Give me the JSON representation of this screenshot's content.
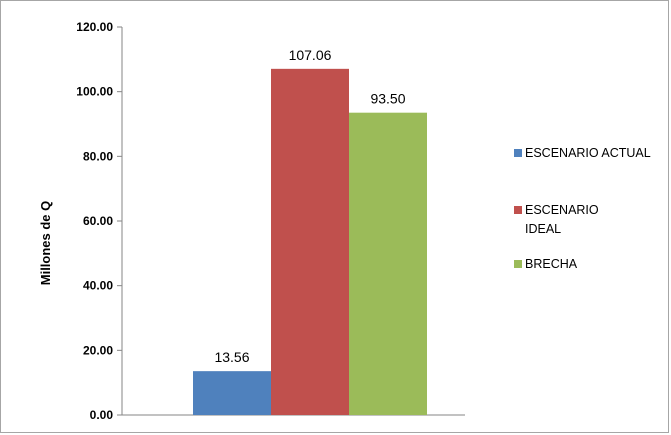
{
  "chart_data": {
    "type": "bar",
    "title": "",
    "xlabel": "",
    "ylabel": "Millones de Q",
    "ylim": [
      0,
      120
    ],
    "yticks": [
      "0.00",
      "20.00",
      "40.00",
      "60.00",
      "80.00",
      "100.00",
      "120.00"
    ],
    "grid": false,
    "legend_position": "right",
    "series": [
      {
        "name": "ESCENARIO ACTUAL",
        "legend_lines": [
          "ESCENARIO ACTUAL"
        ],
        "value": 13.56,
        "label": "13.56",
        "color": "#4f81bd"
      },
      {
        "name": "ESCENARIO IDEAL",
        "legend_lines": [
          "ESCENARIO",
          "IDEAL"
        ],
        "value": 107.06,
        "label": "107.06",
        "color": "#c0504d"
      },
      {
        "name": "BRECHA",
        "legend_lines": [
          "BRECHA"
        ],
        "value": 93.5,
        "label": "93.50",
        "color": "#9bbb59"
      }
    ]
  }
}
